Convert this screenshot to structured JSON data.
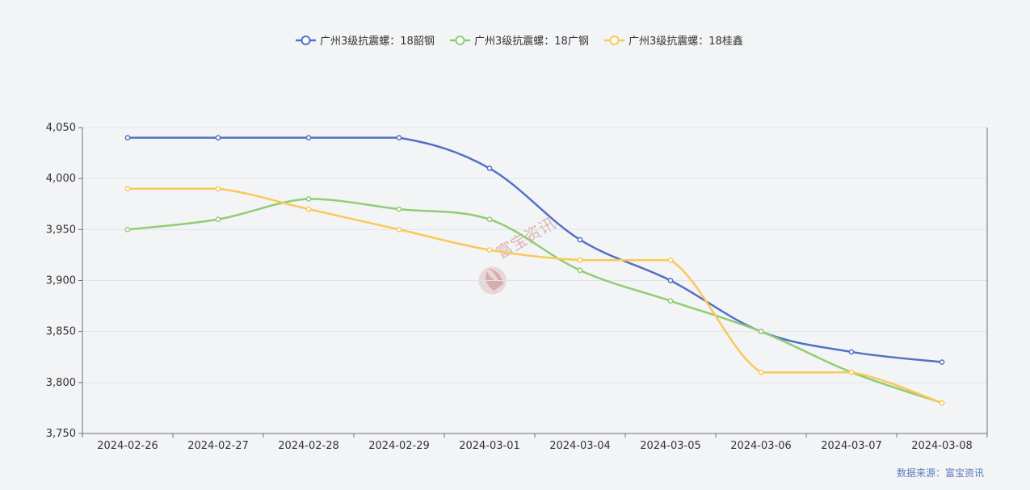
{
  "chart_data": {
    "type": "line",
    "categories": [
      "2024-02-26",
      "2024-02-27",
      "2024-02-28",
      "2024-02-29",
      "2024-03-01",
      "2024-03-04",
      "2024-03-05",
      "2024-03-06",
      "2024-03-07",
      "2024-03-08"
    ],
    "series": [
      {
        "name": "广州3级抗震螺：18韶钢",
        "color": "#5470c6",
        "values": [
          4040,
          4040,
          4040,
          4040,
          4010,
          3940,
          3900,
          3850,
          3830,
          3820
        ]
      },
      {
        "name": "广州3级抗震螺：18广钢",
        "color": "#91cc75",
        "values": [
          3950,
          3960,
          3980,
          3970,
          3960,
          3910,
          3880,
          3850,
          3810,
          3780
        ]
      },
      {
        "name": "广州3级抗震螺：18桂鑫",
        "color": "#fac858",
        "values": [
          3990,
          3990,
          3970,
          3950,
          3930,
          3920,
          3920,
          3810,
          3810,
          3780
        ]
      }
    ],
    "ylim": [
      3750,
      4050
    ],
    "yticks": [
      3750,
      3800,
      3850,
      3900,
      3950,
      4000,
      4050
    ],
    "ytick_labels": [
      "3,750",
      "3,800",
      "3,850",
      "3,900",
      "3,950",
      "4,000",
      "4,050"
    ],
    "grid": true,
    "legend_position": "top-center",
    "smooth": true
  },
  "source": {
    "text": "数据来源：富宝资讯"
  },
  "watermark": {
    "text": "富宝资讯"
  }
}
